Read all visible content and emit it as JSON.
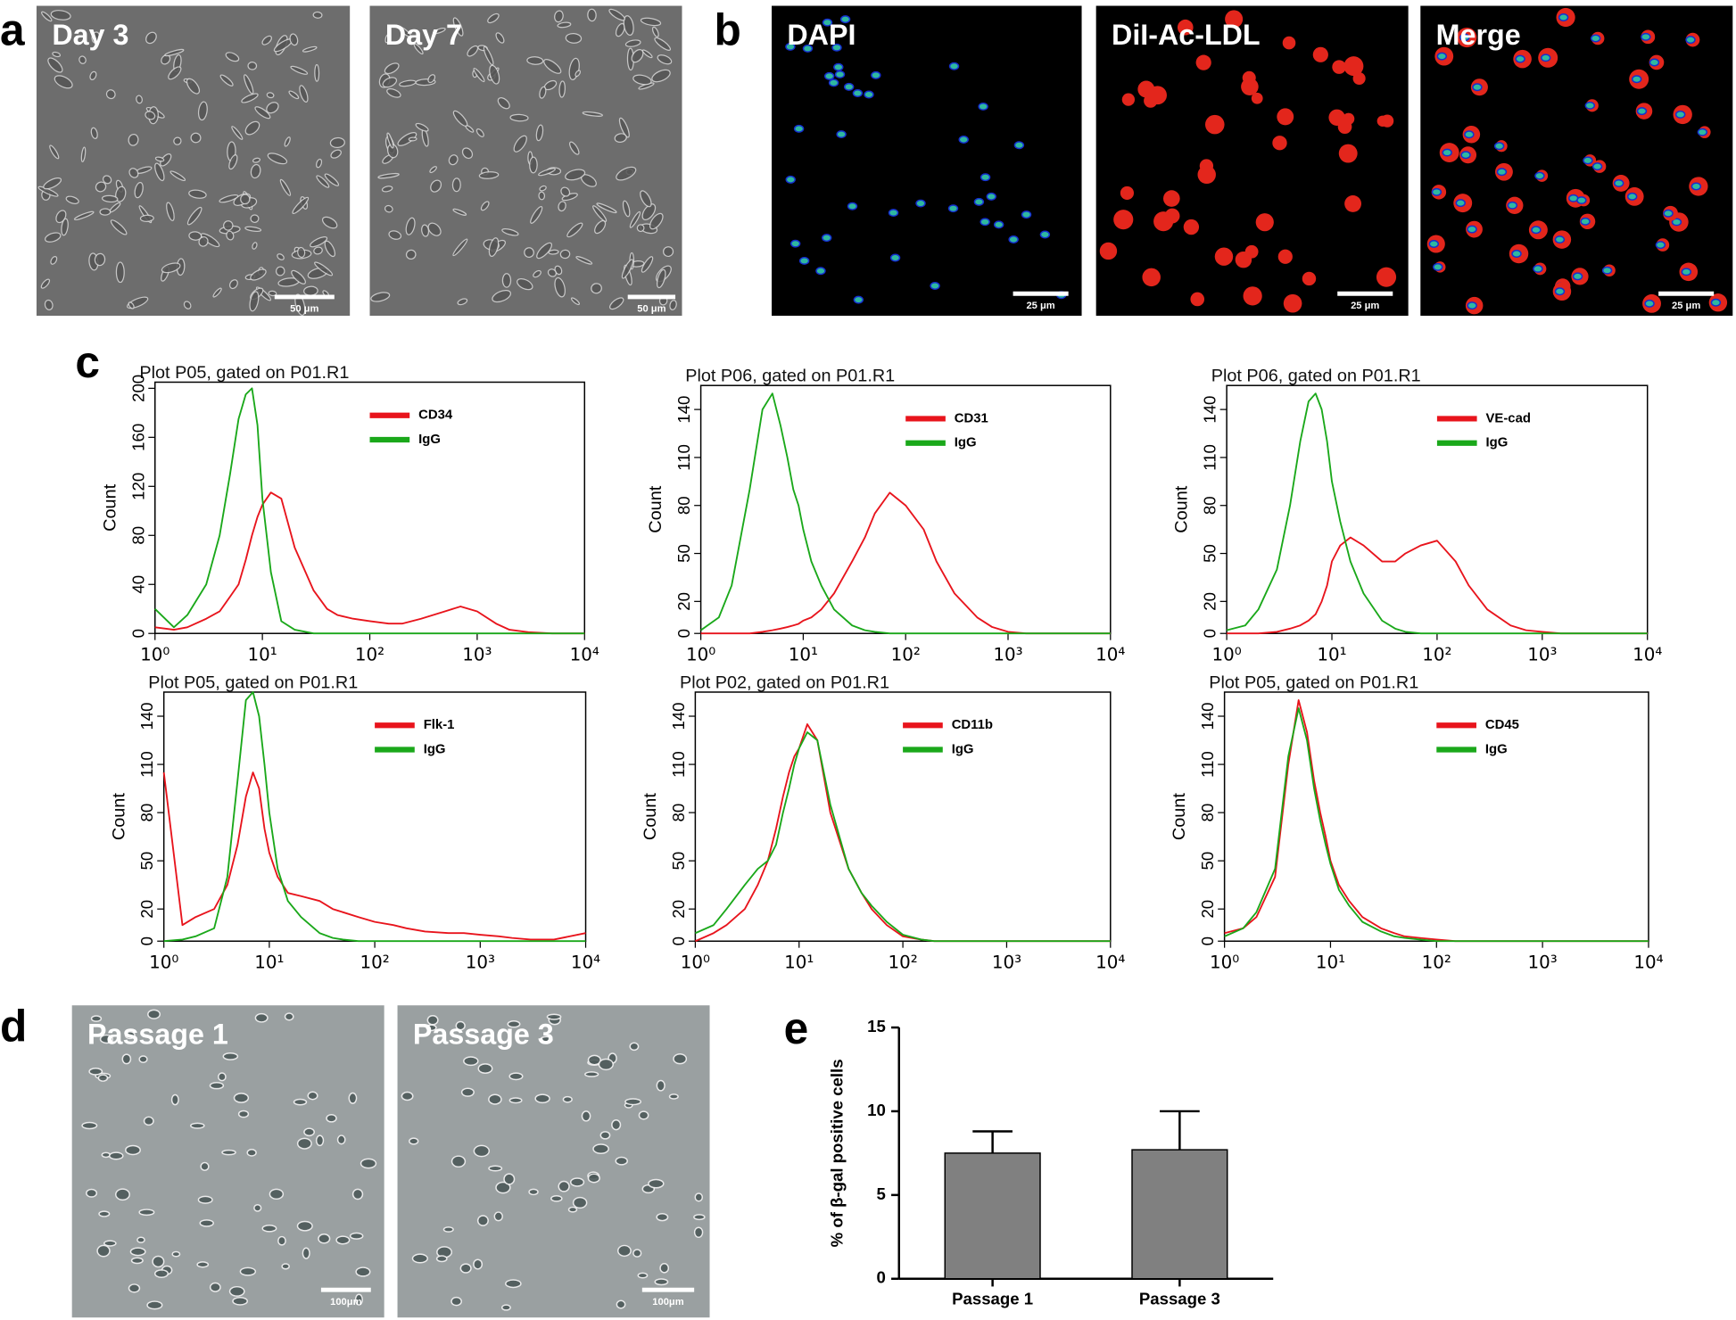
{
  "figure": {
    "panel_labels": [
      "a",
      "b",
      "c",
      "d",
      "e"
    ],
    "images": [
      {
        "label": "Day 3",
        "scale": "50 μm"
      },
      {
        "label": "Day 7",
        "scale": "50 μm"
      },
      {
        "label": "DAPI",
        "scale": "25 μm"
      },
      {
        "label": "DiI-Ac-LDL",
        "scale": "25 μm"
      },
      {
        "label": "Merge",
        "scale": "25 μm"
      },
      {
        "label": "Passage 1",
        "scale": "100μm"
      },
      {
        "label": "Passage 3",
        "scale": "100μm"
      }
    ]
  },
  "chart_data": [
    {
      "type": "line",
      "title": "Plot P05, gated on P01.R1",
      "y_label": "Count",
      "x_scale": "log",
      "legend": "upper right",
      "x": [
        1,
        1.5,
        2,
        3,
        4,
        5,
        6,
        7,
        8,
        9,
        10,
        12,
        15,
        20,
        30,
        40,
        50,
        70,
        100,
        150,
        200,
        300,
        500,
        700,
        1000,
        1500,
        2000,
        3000,
        5000,
        10000
      ],
      "series": [
        {
          "name": "CD34",
          "color": "#e8141c",
          "values": [
            5,
            3,
            5,
            12,
            18,
            30,
            40,
            60,
            80,
            95,
            105,
            115,
            110,
            70,
            35,
            20,
            15,
            12,
            10,
            8,
            8,
            12,
            18,
            22,
            18,
            8,
            3,
            1,
            0,
            0
          ]
        },
        {
          "name": "IgG",
          "color": "#1aa81a",
          "values": [
            20,
            5,
            15,
            40,
            80,
            130,
            175,
            195,
            200,
            170,
            110,
            50,
            10,
            3,
            0,
            0,
            0,
            0,
            0,
            0,
            0,
            0,
            0,
            0,
            0,
            0,
            0,
            0,
            0,
            0
          ]
        }
      ],
      "xlim": [
        1,
        10000
      ],
      "xticks": [
        {
          "value": 1,
          "label": "10⁰"
        },
        {
          "value": 10,
          "label": "10¹"
        },
        {
          "value": 100,
          "label": "10²"
        },
        {
          "value": 1000,
          "label": "10³"
        },
        {
          "value": 10000,
          "label": "10⁴"
        }
      ],
      "ylim": [
        0,
        205
      ],
      "yticks": [
        0,
        40,
        80,
        120,
        160,
        200
      ]
    },
    {
      "type": "line",
      "title": "Plot P06, gated on P01.R1",
      "y_label": "Count",
      "x_scale": "log",
      "legend": "upper right",
      "x": [
        1,
        1.5,
        2,
        3,
        4,
        5,
        6,
        7,
        8,
        9,
        10,
        12,
        15,
        20,
        30,
        40,
        50,
        70,
        100,
        150,
        200,
        300,
        500,
        700,
        1000,
        1500,
        2000,
        3000,
        5000,
        10000
      ],
      "series": [
        {
          "name": "CD31",
          "color": "#e8141c",
          "values": [
            0,
            0,
            0,
            0,
            1,
            2,
            3,
            4,
            5,
            6,
            8,
            10,
            15,
            25,
            45,
            60,
            75,
            88,
            80,
            65,
            45,
            25,
            10,
            4,
            1,
            0,
            0,
            0,
            0,
            0
          ]
        },
        {
          "name": "IgG",
          "color": "#1aa81a",
          "values": [
            2,
            10,
            30,
            90,
            140,
            150,
            130,
            110,
            90,
            80,
            65,
            45,
            30,
            15,
            5,
            2,
            1,
            0,
            0,
            0,
            0,
            0,
            0,
            0,
            0,
            0,
            0,
            0,
            0,
            0
          ]
        }
      ],
      "xlim": [
        1,
        10000
      ],
      "xticks": [
        {
          "value": 1,
          "label": "10⁰"
        },
        {
          "value": 10,
          "label": "10¹"
        },
        {
          "value": 100,
          "label": "10²"
        },
        {
          "value": 1000,
          "label": "10³"
        },
        {
          "value": 10000,
          "label": "10⁴"
        }
      ],
      "ylim": [
        0,
        155
      ],
      "yticks": [
        0,
        20,
        50,
        80,
        110,
        140
      ]
    },
    {
      "type": "line",
      "title": "Plot P06, gated on P01.R1",
      "y_label": "Count",
      "x_scale": "log",
      "legend": "upper right",
      "x": [
        1,
        1.5,
        2,
        3,
        4,
        5,
        6,
        7,
        8,
        9,
        10,
        12,
        15,
        20,
        30,
        40,
        50,
        70,
        100,
        150,
        200,
        300,
        500,
        700,
        1000,
        1500,
        2000,
        3000,
        5000,
        10000
      ],
      "series": [
        {
          "name": "VE-cad",
          "color": "#e8141c",
          "values": [
            0,
            0,
            0,
            1,
            3,
            5,
            8,
            12,
            20,
            30,
            45,
            55,
            60,
            55,
            45,
            45,
            50,
            55,
            58,
            45,
            30,
            15,
            5,
            2,
            1,
            0,
            0,
            0,
            0,
            0
          ]
        },
        {
          "name": "IgG",
          "color": "#1aa81a",
          "values": [
            2,
            5,
            15,
            40,
            80,
            120,
            145,
            150,
            140,
            120,
            95,
            70,
            45,
            25,
            8,
            3,
            1,
            0,
            0,
            0,
            0,
            0,
            0,
            0,
            0,
            0,
            0,
            0,
            0,
            0
          ]
        }
      ],
      "xlim": [
        1,
        10000
      ],
      "xticks": [
        {
          "value": 1,
          "label": "10⁰"
        },
        {
          "value": 10,
          "label": "10¹"
        },
        {
          "value": 100,
          "label": "10²"
        },
        {
          "value": 1000,
          "label": "10³"
        },
        {
          "value": 10000,
          "label": "10⁴"
        }
      ],
      "ylim": [
        0,
        155
      ],
      "yticks": [
        0,
        20,
        50,
        80,
        110,
        140
      ]
    },
    {
      "type": "line",
      "title": "Plot P05, gated on P01.R1",
      "y_label": "Count",
      "x_scale": "log",
      "legend": "upper right",
      "x": [
        1,
        1.5,
        2,
        3,
        4,
        5,
        6,
        7,
        8,
        9,
        10,
        12,
        15,
        20,
        30,
        40,
        50,
        70,
        100,
        150,
        200,
        300,
        500,
        700,
        1000,
        1500,
        2000,
        3000,
        5000,
        10000
      ],
      "series": [
        {
          "name": "Flk-1",
          "color": "#e8141c",
          "values": [
            105,
            10,
            15,
            20,
            35,
            60,
            90,
            105,
            95,
            70,
            55,
            40,
            30,
            28,
            25,
            20,
            18,
            15,
            12,
            10,
            8,
            6,
            5,
            5,
            4,
            3,
            2,
            1,
            1,
            5
          ]
        },
        {
          "name": "IgG",
          "color": "#1aa81a",
          "values": [
            0,
            1,
            3,
            8,
            40,
            100,
            150,
            155,
            140,
            110,
            80,
            45,
            25,
            15,
            5,
            2,
            1,
            0,
            0,
            0,
            0,
            0,
            0,
            0,
            0,
            0,
            0,
            0,
            0,
            0
          ]
        }
      ],
      "xlim": [
        1,
        10000
      ],
      "xticks": [
        {
          "value": 1,
          "label": "10⁰"
        },
        {
          "value": 10,
          "label": "10¹"
        },
        {
          "value": 100,
          "label": "10²"
        },
        {
          "value": 1000,
          "label": "10³"
        },
        {
          "value": 10000,
          "label": "10⁴"
        }
      ],
      "ylim": [
        0,
        155
      ],
      "yticks": [
        0,
        20,
        50,
        80,
        110,
        140
      ]
    },
    {
      "type": "line",
      "title": "Plot P02, gated on P01.R1",
      "y_label": "Count",
      "x_scale": "log",
      "legend": "upper right",
      "x": [
        1,
        1.5,
        2,
        3,
        4,
        5,
        6,
        7,
        8,
        9,
        10,
        12,
        15,
        20,
        30,
        40,
        50,
        70,
        100,
        150,
        200,
        300,
        500,
        700,
        1000,
        1500,
        2000,
        3000,
        5000,
        10000
      ],
      "series": [
        {
          "name": "CD11b",
          "color": "#e8141c",
          "values": [
            0,
            5,
            10,
            20,
            35,
            50,
            70,
            90,
            105,
            115,
            120,
            135,
            125,
            80,
            45,
            30,
            20,
            10,
            3,
            1,
            0,
            0,
            0,
            0,
            0,
            0,
            0,
            0,
            0,
            0
          ]
        },
        {
          "name": "IgG",
          "color": "#1aa81a",
          "values": [
            5,
            10,
            20,
            35,
            45,
            50,
            60,
            80,
            95,
            110,
            120,
            130,
            125,
            85,
            45,
            30,
            22,
            12,
            4,
            1,
            0,
            0,
            0,
            0,
            0,
            0,
            0,
            0,
            0,
            0
          ]
        }
      ],
      "xlim": [
        1,
        10000
      ],
      "xticks": [
        {
          "value": 1,
          "label": "10⁰"
        },
        {
          "value": 10,
          "label": "10¹"
        },
        {
          "value": 100,
          "label": "10²"
        },
        {
          "value": 1000,
          "label": "10³"
        },
        {
          "value": 10000,
          "label": "10⁴"
        }
      ],
      "ylim": [
        0,
        155
      ],
      "yticks": [
        0,
        20,
        50,
        80,
        110,
        140
      ]
    },
    {
      "type": "line",
      "title": "Plot P05, gated on P01.R1",
      "y_label": "Count",
      "x_scale": "log",
      "legend": "upper right",
      "x": [
        1,
        1.5,
        2,
        3,
        4,
        5,
        6,
        7,
        8,
        9,
        10,
        12,
        15,
        20,
        30,
        40,
        50,
        70,
        100,
        150,
        200,
        300,
        500,
        700,
        1000,
        1500,
        2000,
        3000,
        5000,
        10000
      ],
      "series": [
        {
          "name": "CD45",
          "color": "#e8141c",
          "values": [
            5,
            8,
            15,
            40,
            110,
            150,
            130,
            100,
            80,
            65,
            50,
            35,
            25,
            15,
            8,
            5,
            3,
            2,
            1,
            0,
            0,
            0,
            0,
            0,
            0,
            0,
            0,
            0,
            0,
            0
          ]
        },
        {
          "name": "IgG",
          "color": "#1aa81a",
          "values": [
            3,
            8,
            18,
            45,
            115,
            145,
            125,
            95,
            75,
            60,
            48,
            32,
            22,
            12,
            6,
            3,
            2,
            1,
            0,
            0,
            0,
            0,
            0,
            0,
            0,
            0,
            0,
            0,
            0,
            0
          ]
        }
      ],
      "xlim": [
        1,
        10000
      ],
      "xticks": [
        {
          "value": 1,
          "label": "10⁰"
        },
        {
          "value": 10,
          "label": "10¹"
        },
        {
          "value": 100,
          "label": "10²"
        },
        {
          "value": 1000,
          "label": "10³"
        },
        {
          "value": 10000,
          "label": "10⁴"
        }
      ],
      "ylim": [
        0,
        155
      ],
      "yticks": [
        0,
        20,
        50,
        80,
        110,
        140
      ]
    },
    {
      "type": "bar",
      "y_label": "% of β-gal positive cells",
      "categories": [
        "Passage 1",
        "Passage 3"
      ],
      "values": [
        7.5,
        7.7
      ],
      "errors": [
        1.3,
        2.3
      ],
      "color": "#808080",
      "ylim": [
        0,
        15
      ],
      "yticks": [
        0,
        5,
        10,
        15
      ]
    }
  ]
}
